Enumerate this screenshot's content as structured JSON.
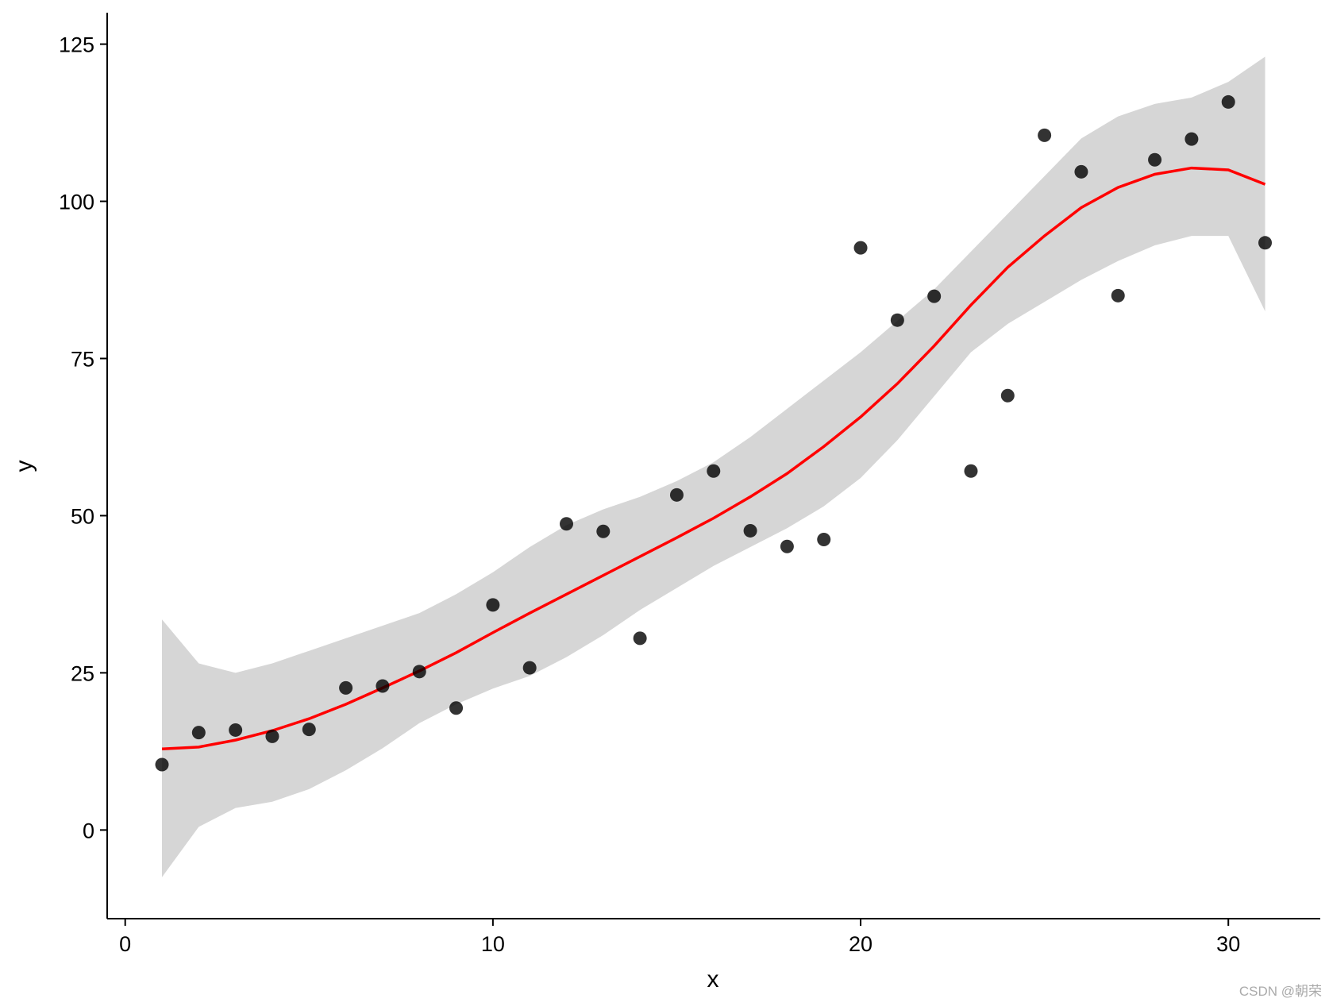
{
  "chart_data": {
    "type": "scatter-smooth",
    "x_label": "x",
    "y_label": "y",
    "xlim": [
      -0.49,
      32.5
    ],
    "ylim": [
      -14.1,
      130.0
    ],
    "xticks": [
      0,
      10,
      20,
      30
    ],
    "yticks": [
      0,
      25,
      50,
      75,
      100,
      125
    ],
    "points": {
      "color": "#000000",
      "x": [
        1,
        2,
        3,
        4,
        5,
        6,
        7,
        8,
        9,
        10,
        11,
        12,
        13,
        14,
        15,
        16,
        17,
        18,
        19,
        20,
        21,
        22,
        23,
        24,
        25,
        26,
        27,
        28,
        29,
        30,
        31
      ],
      "y": [
        10.4,
        15.5,
        15.9,
        14.9,
        16.0,
        22.6,
        22.9,
        25.2,
        19.4,
        35.8,
        25.8,
        48.7,
        47.5,
        30.5,
        53.3,
        57.1,
        47.6,
        45.1,
        46.2,
        92.6,
        81.1,
        84.9,
        57.1,
        69.1,
        110.5,
        104.7,
        85.0,
        106.6,
        109.9,
        115.8,
        93.4
      ]
    },
    "fit": {
      "color": "#ff0000",
      "band_color": "#d6d6d6",
      "x": [
        1,
        2,
        3,
        4,
        5,
        6,
        7,
        8,
        9,
        10,
        11,
        12,
        13,
        14,
        15,
        16,
        17,
        18,
        19,
        20,
        21,
        22,
        23,
        24,
        25,
        26,
        27,
        28,
        29,
        30,
        31
      ],
      "y": [
        12.9,
        13.2,
        14.3,
        15.8,
        17.7,
        20.0,
        22.6,
        25.3,
        28.2,
        31.4,
        34.5,
        37.5,
        40.5,
        43.5,
        46.5,
        49.6,
        53.0,
        56.7,
        61.0,
        65.7,
        71.0,
        77.0,
        83.5,
        89.5,
        94.5,
        99.0,
        102.2,
        104.3,
        105.3,
        105.0,
        102.7
      ],
      "ymax": [
        33.5,
        26.5,
        25.0,
        26.5,
        28.5,
        30.5,
        32.5,
        34.5,
        37.5,
        41,
        45,
        48.5,
        51,
        53,
        55.5,
        58.5,
        62.5,
        67,
        71.5,
        76,
        81,
        86,
        92,
        98,
        104,
        110,
        113.5,
        115.5,
        116.5,
        119,
        123
      ],
      "ymin": [
        -7.5,
        0.5,
        3.5,
        4.5,
        6.5,
        9.5,
        13,
        17,
        20,
        22.5,
        24.5,
        27.5,
        31,
        35,
        38.5,
        42,
        45,
        48,
        51.5,
        56,
        62,
        69,
        76,
        80.5,
        84,
        87.5,
        90.5,
        93,
        94.5,
        94.5,
        82.5
      ]
    }
  },
  "watermark": "CSDN @朝荣"
}
